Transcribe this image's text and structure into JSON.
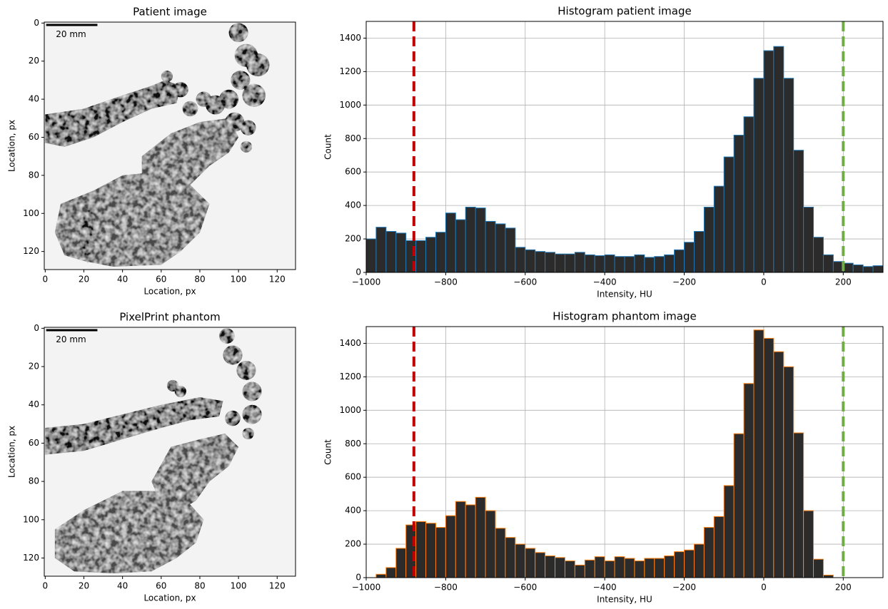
{
  "chart_data": [
    {
      "type": "image",
      "title": "Patient image",
      "xlabel": "Location, px",
      "ylabel": "Location, px",
      "xlim": [
        -0.5,
        129.5
      ],
      "ylim": [
        129.5,
        -0.5
      ],
      "xticks": [
        0,
        20,
        40,
        60,
        80,
        100,
        120
      ],
      "yticks": [
        0,
        20,
        40,
        60,
        80,
        100,
        120
      ],
      "annotation": "20 mm"
    },
    {
      "type": "histogram",
      "title": "Histogram patient image",
      "xlabel": "Intensity, HU",
      "ylabel": "Count",
      "bins": [
        -1000,
        -975,
        -950,
        -925,
        -900,
        -875,
        -850,
        -825,
        -800,
        -775,
        -750,
        -725,
        -700,
        -675,
        -650,
        -625,
        -600,
        -575,
        -550,
        -525,
        -500,
        -475,
        -450,
        -425,
        -400,
        -375,
        -350,
        -325,
        -300,
        -275,
        -250,
        -225,
        -200,
        -175,
        -150,
        -125,
        -100,
        -75,
        -50,
        -25,
        0,
        25,
        50,
        75,
        100,
        125,
        150,
        175,
        200,
        225,
        250,
        275,
        300
      ],
      "values": [
        200,
        270,
        245,
        235,
        190,
        190,
        210,
        240,
        355,
        315,
        390,
        385,
        305,
        290,
        265,
        150,
        135,
        125,
        120,
        110,
        110,
        120,
        105,
        100,
        105,
        95,
        95,
        105,
        90,
        95,
        105,
        135,
        180,
        245,
        390,
        515,
        690,
        820,
        930,
        1160,
        1325,
        1350,
        1160,
        730,
        390,
        210,
        105,
        65,
        55,
        45,
        35,
        40
      ],
      "color": "#2b2b2b",
      "edgecolor": "#1f77b4",
      "xlim": [
        -1000,
        300
      ],
      "ylim": [
        0,
        1500
      ],
      "xticks": [
        {
          "value": -1000,
          "label": "−1000"
        },
        {
          "value": -800,
          "label": "−800"
        },
        {
          "value": -600,
          "label": "−600"
        },
        {
          "value": -400,
          "label": "−400"
        },
        {
          "value": -200,
          "label": "−200"
        },
        0,
        200
      ],
      "yticks": [
        0,
        200,
        400,
        600,
        800,
        1000,
        1200,
        1400
      ],
      "grid": true,
      "vlines": [
        {
          "value": -880,
          "color": "#c00000"
        },
        {
          "value": 200,
          "color": "#70ad47"
        }
      ]
    },
    {
      "type": "image",
      "title": "PixelPrint phantom",
      "xlabel": "Location, px",
      "ylabel": "Location, px",
      "xlim": [
        -0.5,
        129.5
      ],
      "ylim": [
        129.5,
        -0.5
      ],
      "xticks": [
        0,
        20,
        40,
        60,
        80,
        100,
        120
      ],
      "yticks": [
        0,
        20,
        40,
        60,
        80,
        100,
        120
      ],
      "annotation": "20 mm"
    },
    {
      "type": "histogram",
      "title": "Histogram phantom image",
      "xlabel": "Intensity, HU",
      "ylabel": "Count",
      "bins": [
        -1000,
        -975,
        -950,
        -925,
        -900,
        -875,
        -850,
        -825,
        -800,
        -775,
        -750,
        -725,
        -700,
        -675,
        -650,
        -625,
        -600,
        -575,
        -550,
        -525,
        -500,
        -475,
        -450,
        -425,
        -400,
        -375,
        -350,
        -325,
        -300,
        -275,
        -250,
        -225,
        -200,
        -175,
        -150,
        -125,
        -100,
        -75,
        -50,
        -25,
        0,
        25,
        50,
        75,
        100,
        125,
        150,
        175,
        200,
        225,
        250,
        275,
        300
      ],
      "values": [
        0,
        20,
        60,
        175,
        315,
        335,
        325,
        300,
        370,
        455,
        435,
        480,
        400,
        295,
        240,
        200,
        175,
        150,
        130,
        120,
        100,
        75,
        105,
        125,
        100,
        125,
        115,
        100,
        115,
        115,
        130,
        155,
        165,
        200,
        300,
        365,
        550,
        860,
        1160,
        1480,
        1430,
        1350,
        1260,
        865,
        400,
        110,
        15,
        0,
        0,
        0,
        0,
        0
      ],
      "color": "#2b2b2b",
      "edgecolor": "#ff7f0e",
      "xlim": [
        -1000,
        300
      ],
      "ylim": [
        0,
        1500
      ],
      "xticks": [
        {
          "value": -1000,
          "label": "−1000"
        },
        {
          "value": -800,
          "label": "−800"
        },
        {
          "value": -600,
          "label": "−600"
        },
        {
          "value": -400,
          "label": "−400"
        },
        {
          "value": -200,
          "label": "−200"
        },
        0,
        200
      ],
      "yticks": [
        0,
        200,
        400,
        600,
        800,
        1000,
        1200,
        1400
      ],
      "grid": true,
      "vlines": [
        {
          "value": -880,
          "color": "#c00000"
        },
        {
          "value": 200,
          "color": "#70ad47"
        }
      ]
    }
  ]
}
